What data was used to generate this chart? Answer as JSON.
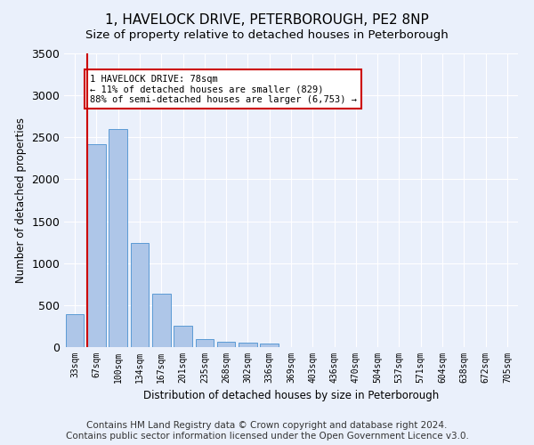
{
  "title": "1, HAVELOCK DRIVE, PETERBOROUGH, PE2 8NP",
  "subtitle": "Size of property relative to detached houses in Peterborough",
  "xlabel": "Distribution of detached houses by size in Peterborough",
  "ylabel": "Number of detached properties",
  "categories": [
    "33sqm",
    "67sqm",
    "100sqm",
    "134sqm",
    "167sqm",
    "201sqm",
    "235sqm",
    "268sqm",
    "302sqm",
    "336sqm",
    "369sqm",
    "403sqm",
    "436sqm",
    "470sqm",
    "504sqm",
    "537sqm",
    "571sqm",
    "604sqm",
    "638sqm",
    "672sqm",
    "705sqm"
  ],
  "values": [
    390,
    2420,
    2600,
    1240,
    640,
    255,
    95,
    60,
    55,
    40,
    0,
    0,
    0,
    0,
    0,
    0,
    0,
    0,
    0,
    0,
    0
  ],
  "bar_color": "#aec6e8",
  "bar_edge_color": "#5b9bd5",
  "vline_x": 0.58,
  "vline_color": "#cc0000",
  "annotation_text": "1 HAVELOCK DRIVE: 78sqm\n← 11% of detached houses are smaller (829)\n88% of semi-detached houses are larger (6,753) →",
  "annotation_box_color": "#ffffff",
  "annotation_box_edge": "#cc0000",
  "ylim": [
    0,
    3500
  ],
  "yticks": [
    0,
    500,
    1000,
    1500,
    2000,
    2500,
    3000,
    3500
  ],
  "footer": "Contains HM Land Registry data © Crown copyright and database right 2024.\nContains public sector information licensed under the Open Government Licence v3.0.",
  "bg_color": "#eaf0fb",
  "plot_bg_color": "#eaf0fb",
  "grid_color": "#ffffff",
  "title_fontsize": 11,
  "subtitle_fontsize": 9.5,
  "footer_fontsize": 7.5
}
